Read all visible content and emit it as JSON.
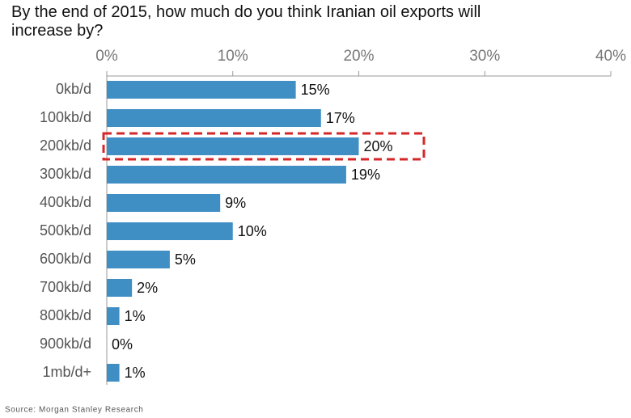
{
  "chart_data": {
    "type": "bar",
    "orientation": "horizontal",
    "title": "By the end of 2015, how much do you think Iranian oil exports will increase by?",
    "categories": [
      "0kb/d",
      "100kb/d",
      "200kb/d",
      "300kb/d",
      "400kb/d",
      "500kb/d",
      "600kb/d",
      "700kb/d",
      "800kb/d",
      "900kb/d",
      "1mb/d+"
    ],
    "values": [
      15,
      17,
      20,
      19,
      9,
      10,
      5,
      2,
      1,
      0,
      1
    ],
    "value_labels": [
      "15%",
      "17%",
      "20%",
      "19%",
      "9%",
      "10%",
      "5%",
      "2%",
      "1%",
      "0%",
      "1%"
    ],
    "color": "#3f8fc5",
    "xlim": [
      0,
      40
    ],
    "xticks": [
      {
        "value": 0,
        "label": "0%"
      },
      {
        "value": 10,
        "label": "10%"
      },
      {
        "value": 20,
        "label": "20%"
      },
      {
        "value": 30,
        "label": "30%"
      },
      {
        "value": 40,
        "label": "40%"
      }
    ],
    "source": "Source: Morgan Stanley Research"
  }
}
